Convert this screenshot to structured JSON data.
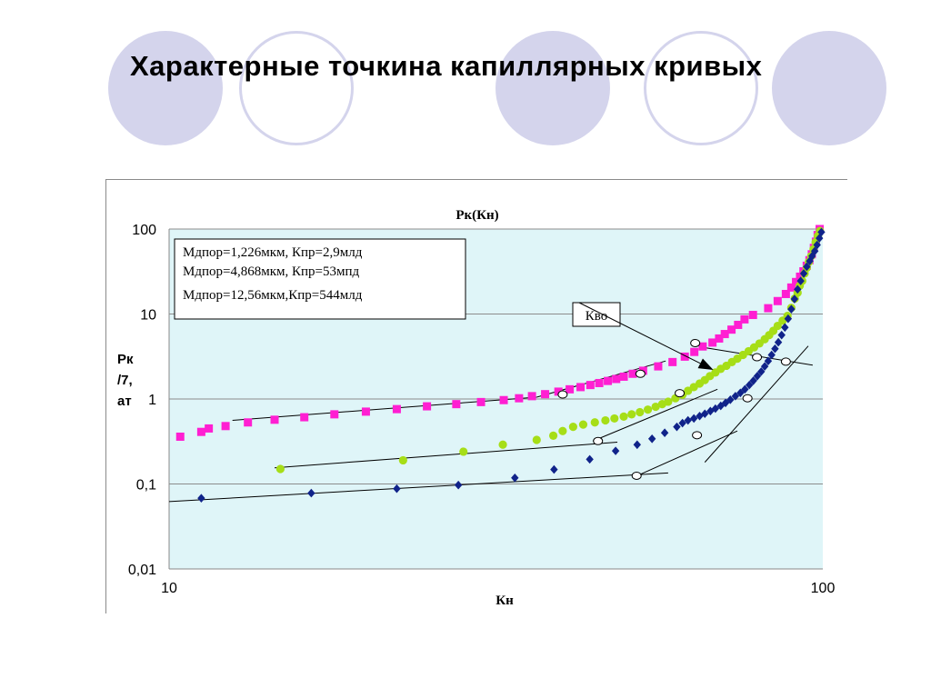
{
  "slide": {
    "title": "Характерные точкина капиллярных кривых"
  },
  "colors": {
    "background": "#ffffff",
    "decor_circle": "#d4d4ec",
    "plot_background": "#dff5f8"
  },
  "chart_data": {
    "type": "scatter",
    "title": "Рк(Кн)",
    "xlabel": "Кн",
    "ylabel_lines": [
      "Рк",
      "/7,",
      "ат"
    ],
    "x_scale": "log",
    "y_scale": "log",
    "xlim": [
      10,
      100
    ],
    "ylim": [
      0.01,
      100
    ],
    "x_ticks": [
      {
        "value": 10,
        "label": "10"
      },
      {
        "value": 100,
        "label": "100"
      }
    ],
    "y_ticks": [
      {
        "value": 100,
        "label": "100"
      },
      {
        "value": 10,
        "label": "10"
      },
      {
        "value": 1,
        "label": "1"
      },
      {
        "value": 0.1,
        "label": "0,1"
      },
      {
        "value": 0.01,
        "label": "0,01"
      }
    ],
    "grid": {
      "horizontal": true,
      "vertical": false
    },
    "legend": {
      "placement": "top-left",
      "entries": [
        "Мдпор=1,226мкм, Кпр=2,9млд",
        "Мдпор=4,868мкм, Кпр=53мпд",
        "Мдпор=12,56мкм,Кпр=544млд"
      ]
    },
    "annotation": {
      "text": "Кво",
      "arrow_to": [
        68.0,
        2.2
      ]
    },
    "series": [
      {
        "marker": "square",
        "color": "#ff1fd2",
        "points": [
          [
            10.4,
            0.36
          ],
          [
            11.2,
            0.41
          ],
          [
            11.5,
            0.45
          ],
          [
            12.2,
            0.48
          ],
          [
            13.2,
            0.53
          ],
          [
            14.5,
            0.57
          ],
          [
            16.1,
            0.61
          ],
          [
            17.9,
            0.66
          ],
          [
            20.0,
            0.71
          ],
          [
            22.3,
            0.76
          ],
          [
            24.8,
            0.82
          ],
          [
            27.5,
            0.87
          ],
          [
            30.0,
            0.92
          ],
          [
            32.5,
            0.97
          ],
          [
            34.3,
            1.02
          ],
          [
            35.9,
            1.08
          ],
          [
            37.6,
            1.14
          ],
          [
            39.4,
            1.22
          ],
          [
            41.0,
            1.3
          ],
          [
            42.6,
            1.38
          ],
          [
            44.1,
            1.46
          ],
          [
            45.5,
            1.54
          ],
          [
            46.9,
            1.63
          ],
          [
            48.3,
            1.72
          ],
          [
            49.6,
            1.83
          ],
          [
            51.2,
            1.98
          ],
          [
            53.1,
            2.15
          ],
          [
            56.0,
            2.42
          ],
          [
            58.9,
            2.72
          ],
          [
            61.5,
            3.15
          ],
          [
            63.6,
            3.58
          ],
          [
            65.5,
            4.15
          ],
          [
            67.8,
            4.61
          ],
          [
            69.4,
            5.15
          ],
          [
            70.8,
            5.81
          ],
          [
            72.5,
            6.55
          ],
          [
            74.2,
            7.45
          ],
          [
            75.9,
            8.65
          ],
          [
            78.2,
            9.75
          ],
          [
            82.5,
            11.7
          ],
          [
            85.3,
            14.2
          ],
          [
            87.8,
            17.2
          ],
          [
            89.5,
            20.5
          ],
          [
            91.0,
            23.8
          ],
          [
            92.3,
            27.5
          ],
          [
            93.4,
            31.8
          ],
          [
            94.5,
            37.0
          ],
          [
            95.4,
            43.0
          ],
          [
            96.2,
            50.5
          ],
          [
            96.9,
            60.0
          ],
          [
            97.6,
            71.0
          ],
          [
            98.2,
            85.0
          ],
          [
            98.9,
            100.0
          ]
        ]
      },
      {
        "marker": "circle",
        "color": "#a6de17",
        "points": [
          [
            14.8,
            0.15
          ],
          [
            22.8,
            0.19
          ],
          [
            28.2,
            0.24
          ],
          [
            32.4,
            0.29
          ],
          [
            36.5,
            0.33
          ],
          [
            38.7,
            0.37
          ],
          [
            40.0,
            0.42
          ],
          [
            41.5,
            0.47
          ],
          [
            43.0,
            0.5
          ],
          [
            44.8,
            0.53
          ],
          [
            46.5,
            0.56
          ],
          [
            48.0,
            0.59
          ],
          [
            49.6,
            0.62
          ],
          [
            51.0,
            0.66
          ],
          [
            52.5,
            0.7
          ],
          [
            54.0,
            0.75
          ],
          [
            55.5,
            0.81
          ],
          [
            56.8,
            0.87
          ],
          [
            58.0,
            0.93
          ],
          [
            59.5,
            1.02
          ],
          [
            61.0,
            1.12
          ],
          [
            62.2,
            1.25
          ],
          [
            63.5,
            1.38
          ],
          [
            64.8,
            1.52
          ],
          [
            66.0,
            1.67
          ],
          [
            67.2,
            1.86
          ],
          [
            68.5,
            2.05
          ],
          [
            69.8,
            2.26
          ],
          [
            71.2,
            2.46
          ],
          [
            72.6,
            2.72
          ],
          [
            74.0,
            2.98
          ],
          [
            75.5,
            3.3
          ],
          [
            77.0,
            3.65
          ],
          [
            78.5,
            4.05
          ],
          [
            80.0,
            4.5
          ],
          [
            81.5,
            5.05
          ],
          [
            82.8,
            5.65
          ],
          [
            84.0,
            6.35
          ],
          [
            85.3,
            7.25
          ],
          [
            86.8,
            8.35
          ],
          [
            88.3,
            9.5
          ],
          [
            89.5,
            11.8
          ],
          [
            90.6,
            15.2
          ],
          [
            91.5,
            17.8
          ],
          [
            92.2,
            21.5
          ],
          [
            93.0,
            24.5
          ],
          [
            93.8,
            30.0
          ],
          [
            94.5,
            35.0
          ],
          [
            95.2,
            41.0
          ],
          [
            96.0,
            48.0
          ],
          [
            96.8,
            58.0
          ],
          [
            97.5,
            70.0
          ],
          [
            98.3,
            83.0
          ],
          [
            99.0,
            95.0
          ]
        ]
      },
      {
        "marker": "diamond",
        "color": "#10238a",
        "points": [
          [
            11.2,
            0.068
          ],
          [
            16.5,
            0.078
          ],
          [
            22.3,
            0.088
          ],
          [
            27.7,
            0.097
          ],
          [
            33.8,
            0.118
          ],
          [
            38.8,
            0.148
          ],
          [
            44.0,
            0.195
          ],
          [
            48.2,
            0.245
          ],
          [
            52.0,
            0.29
          ],
          [
            54.8,
            0.34
          ],
          [
            57.3,
            0.4
          ],
          [
            59.8,
            0.47
          ],
          [
            61.0,
            0.52
          ],
          [
            62.2,
            0.56
          ],
          [
            63.5,
            0.59
          ],
          [
            64.8,
            0.63
          ],
          [
            66.0,
            0.67
          ],
          [
            67.3,
            0.72
          ],
          [
            68.5,
            0.77
          ],
          [
            69.8,
            0.83
          ],
          [
            71.0,
            0.9
          ],
          [
            72.2,
            0.98
          ],
          [
            73.5,
            1.08
          ],
          [
            74.8,
            1.18
          ],
          [
            76.0,
            1.3
          ],
          [
            77.2,
            1.46
          ],
          [
            78.3,
            1.64
          ],
          [
            79.4,
            1.86
          ],
          [
            80.5,
            2.1
          ],
          [
            81.5,
            2.42
          ],
          [
            82.5,
            2.8
          ],
          [
            83.5,
            3.3
          ],
          [
            84.5,
            3.9
          ],
          [
            85.5,
            4.65
          ],
          [
            86.5,
            5.65
          ],
          [
            87.5,
            6.95
          ],
          [
            88.5,
            8.8
          ],
          [
            89.5,
            11.4
          ],
          [
            90.5,
            15.0
          ],
          [
            91.5,
            19.5
          ],
          [
            92.5,
            24.5
          ],
          [
            93.5,
            30.0
          ],
          [
            94.5,
            36.0
          ],
          [
            95.5,
            42.0
          ],
          [
            96.3,
            48.0
          ],
          [
            97.2,
            55.0
          ],
          [
            98.0,
            65.0
          ],
          [
            98.8,
            78.0
          ],
          [
            99.5,
            92.0
          ]
        ]
      }
    ],
    "tangent_lines": [
      [
        [
          12.5,
          0.56
        ],
        [
          36.5,
          1.05
        ]
      ],
      [
        [
          36.5,
          1.05
        ],
        [
          57.5,
          2.8
        ]
      ],
      [
        [
          14.5,
          0.155
        ],
        [
          48.5,
          0.31
        ]
      ],
      [
        [
          44.5,
          0.32
        ],
        [
          69.0,
          1.3
        ]
      ],
      [
        [
          10.0,
          0.062
        ],
        [
          58.0,
          0.135
        ]
      ],
      [
        [
          52.0,
          0.125
        ],
        [
          74.0,
          0.42
        ]
      ],
      [
        [
          65.0,
          4.1
        ],
        [
          96.5,
          2.5
        ]
      ],
      [
        [
          66.0,
          0.18
        ],
        [
          95.0,
          4.2
        ]
      ]
    ],
    "kvo_points": [
      [
        40.0,
        1.13
      ],
      [
        52.6,
        1.98
      ],
      [
        63.8,
        4.55
      ],
      [
        45.3,
        0.32
      ],
      [
        60.4,
        1.17
      ],
      [
        79.3,
        3.1
      ],
      [
        51.9,
        0.125
      ],
      [
        64.2,
        0.375
      ],
      [
        76.7,
        1.02
      ],
      [
        87.8,
        2.75
      ]
    ]
  }
}
